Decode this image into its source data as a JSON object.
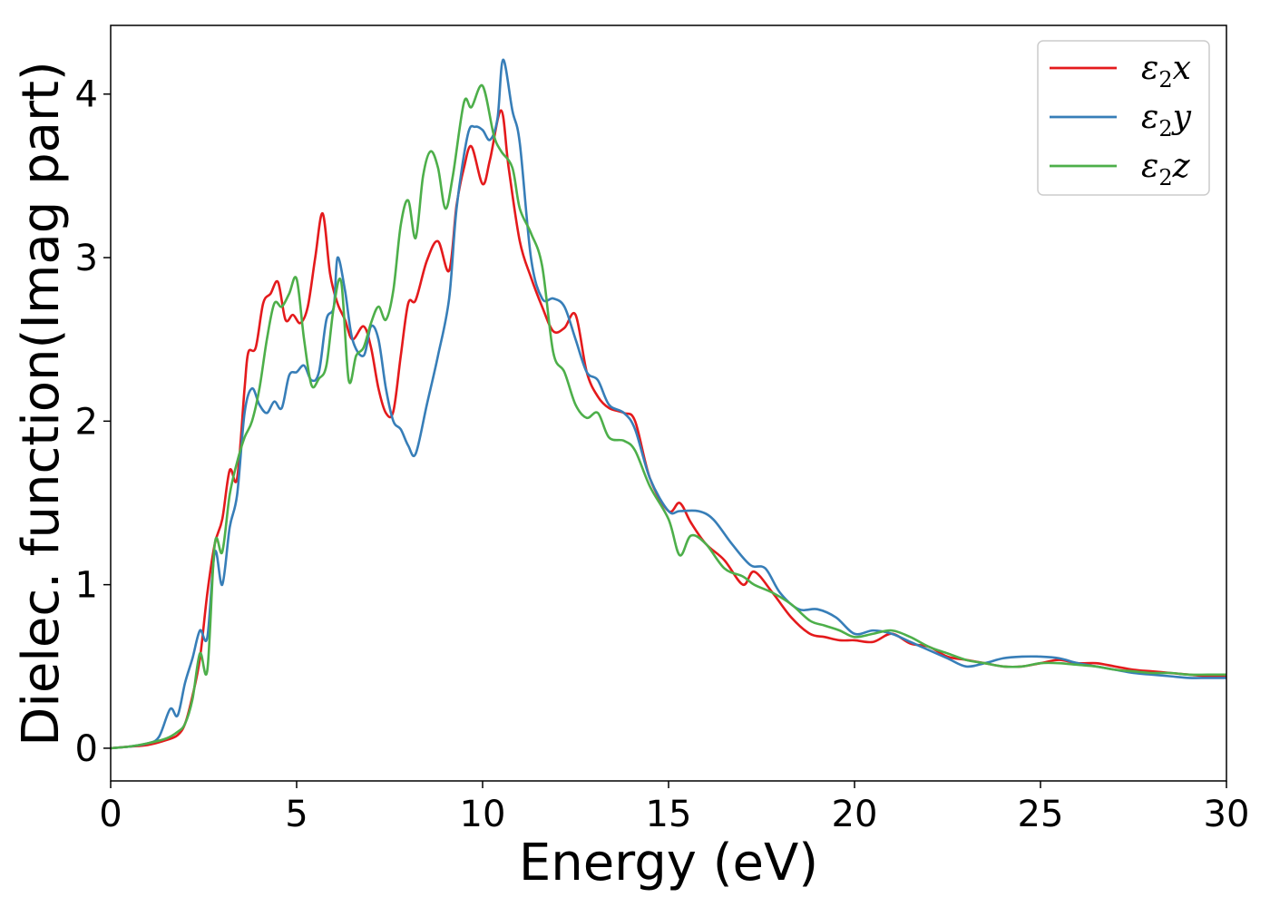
{
  "chart_data": {
    "type": "line",
    "title": "",
    "xlabel": "Energy (eV)",
    "ylabel": "Dielec. function(Imag part)",
    "xlim": [
      0,
      30
    ],
    "ylim": [
      -0.2,
      4.42
    ],
    "xticks": [
      0,
      5,
      10,
      15,
      20,
      25,
      30
    ],
    "yticks": [
      0,
      1,
      2,
      3,
      4
    ],
    "grid": false,
    "legend_position": "top-right",
    "series": [
      {
        "name": "ε2x",
        "symbol": "ε",
        "subscript": "2",
        "axis": "x",
        "color": "#e41a1c",
        "x": [
          0,
          0.5,
          1,
          1.5,
          1.8,
          2,
          2.2,
          2.4,
          2.6,
          2.8,
          3,
          3.2,
          3.4,
          3.6,
          3.7,
          3.9,
          4.1,
          4.3,
          4.5,
          4.7,
          4.9,
          5.1,
          5.3,
          5.5,
          5.7,
          5.9,
          6.1,
          6.3,
          6.5,
          6.8,
          7,
          7.2,
          7.4,
          7.6,
          7.8,
          8,
          8.2,
          8.5,
          8.8,
          9.1,
          9.3,
          9.5,
          9.7,
          10,
          10.2,
          10.5,
          10.7,
          11,
          11.3,
          11.6,
          11.9,
          12.2,
          12.5,
          12.8,
          13.1,
          13.4,
          13.8,
          14.1,
          14.5,
          15,
          15.3,
          15.6,
          16,
          16.5,
          17,
          17.3,
          17.8,
          18.3,
          18.8,
          19.2,
          19.6,
          20,
          20.5,
          21,
          21.5,
          22,
          22.5,
          23,
          23.5,
          24,
          24.5,
          25,
          25.5,
          26,
          26.5,
          27,
          27.5,
          28,
          28.5,
          29,
          29.5,
          30
        ],
        "values": [
          0,
          0.01,
          0.02,
          0.05,
          0.08,
          0.15,
          0.32,
          0.55,
          0.95,
          1.25,
          1.4,
          1.7,
          1.65,
          2.2,
          2.42,
          2.45,
          2.72,
          2.78,
          2.85,
          2.62,
          2.65,
          2.6,
          2.7,
          3.0,
          3.27,
          2.9,
          2.72,
          2.62,
          2.5,
          2.58,
          2.45,
          2.2,
          2.05,
          2.06,
          2.4,
          2.72,
          2.74,
          2.98,
          3.1,
          2.92,
          3.32,
          3.55,
          3.68,
          3.45,
          3.6,
          3.9,
          3.55,
          3.1,
          2.88,
          2.7,
          2.55,
          2.57,
          2.65,
          2.3,
          2.15,
          2.08,
          2.05,
          2.0,
          1.65,
          1.45,
          1.5,
          1.38,
          1.25,
          1.15,
          1.0,
          1.08,
          0.95,
          0.8,
          0.7,
          0.68,
          0.66,
          0.66,
          0.65,
          0.7,
          0.64,
          0.62,
          0.56,
          0.54,
          0.52,
          0.5,
          0.5,
          0.52,
          0.54,
          0.52,
          0.52,
          0.5,
          0.48,
          0.47,
          0.46,
          0.45,
          0.44,
          0.44
        ]
      },
      {
        "name": "ε2y",
        "symbol": "ε",
        "subscript": "2",
        "axis": "y",
        "color": "#377eb8",
        "x": [
          0,
          0.5,
          1,
          1.3,
          1.6,
          1.8,
          2,
          2.2,
          2.4,
          2.6,
          2.8,
          3,
          3.2,
          3.4,
          3.6,
          3.8,
          4,
          4.2,
          4.4,
          4.6,
          4.8,
          5,
          5.2,
          5.4,
          5.6,
          5.8,
          6,
          6.1,
          6.3,
          6.5,
          6.8,
          7,
          7.2,
          7.4,
          7.6,
          7.8,
          8,
          8.2,
          8.5,
          8.8,
          9.1,
          9.3,
          9.6,
          9.8,
          10,
          10.2,
          10.4,
          10.55,
          10.8,
          11,
          11.3,
          11.6,
          11.9,
          12.2,
          12.5,
          12.8,
          13.1,
          13.4,
          13.8,
          14.1,
          14.5,
          15,
          15.3,
          15.8,
          16.2,
          16.7,
          17.2,
          17.6,
          18,
          18.5,
          19,
          19.5,
          20,
          20.5,
          21,
          21.5,
          22,
          22.5,
          23,
          23.5,
          24,
          24.5,
          25,
          25.5,
          26,
          26.5,
          27,
          27.5,
          28,
          28.5,
          29,
          29.5,
          30
        ],
        "values": [
          0,
          0.01,
          0.03,
          0.07,
          0.24,
          0.2,
          0.4,
          0.55,
          0.72,
          0.68,
          1.2,
          1.0,
          1.35,
          1.55,
          2.05,
          2.2,
          2.1,
          2.05,
          2.12,
          2.08,
          2.28,
          2.3,
          2.34,
          2.25,
          2.3,
          2.62,
          2.7,
          3.0,
          2.8,
          2.5,
          2.4,
          2.58,
          2.5,
          2.2,
          2.0,
          1.95,
          1.85,
          1.8,
          2.1,
          2.4,
          2.75,
          3.3,
          3.75,
          3.8,
          3.78,
          3.72,
          3.85,
          4.21,
          3.9,
          3.7,
          3.0,
          2.75,
          2.75,
          2.7,
          2.5,
          2.3,
          2.25,
          2.1,
          2.05,
          1.95,
          1.65,
          1.45,
          1.45,
          1.45,
          1.4,
          1.25,
          1.12,
          1.1,
          0.95,
          0.85,
          0.85,
          0.8,
          0.7,
          0.72,
          0.7,
          0.65,
          0.6,
          0.55,
          0.5,
          0.52,
          0.55,
          0.56,
          0.56,
          0.55,
          0.52,
          0.5,
          0.48,
          0.46,
          0.45,
          0.44,
          0.43,
          0.43,
          0.43
        ]
      },
      {
        "name": "ε2z",
        "symbol": "ε",
        "subscript": "2",
        "axis": "z",
        "color": "#4daf4a",
        "x": [
          0,
          0.5,
          1,
          1.5,
          1.8,
          2,
          2.2,
          2.4,
          2.6,
          2.8,
          3,
          3.2,
          3.4,
          3.6,
          3.8,
          4,
          4.2,
          4.4,
          4.6,
          4.8,
          5,
          5.2,
          5.4,
          5.6,
          5.8,
          6,
          6.2,
          6.4,
          6.6,
          6.8,
          7,
          7.2,
          7.4,
          7.6,
          7.8,
          8,
          8.2,
          8.4,
          8.6,
          8.8,
          9,
          9.2,
          9.5,
          9.7,
          10,
          10.3,
          10.5,
          10.8,
          11,
          11.3,
          11.6,
          11.9,
          12.2,
          12.5,
          12.8,
          13.1,
          13.4,
          13.8,
          14.1,
          14.5,
          15,
          15.3,
          15.6,
          16,
          16.5,
          17,
          17.3,
          17.8,
          18.3,
          18.8,
          19.2,
          19.6,
          20,
          20.5,
          21,
          21.5,
          22,
          22.5,
          23,
          23.5,
          24,
          24.5,
          25,
          25.5,
          26,
          26.5,
          27,
          27.5,
          28,
          28.5,
          29,
          29.5,
          30
        ],
        "values": [
          0,
          0.01,
          0.03,
          0.06,
          0.1,
          0.15,
          0.3,
          0.58,
          0.48,
          1.25,
          1.2,
          1.55,
          1.75,
          1.9,
          2.0,
          2.2,
          2.5,
          2.72,
          2.7,
          2.78,
          2.87,
          2.5,
          2.22,
          2.26,
          2.34,
          2.7,
          2.85,
          2.25,
          2.4,
          2.45,
          2.6,
          2.7,
          2.62,
          2.8,
          3.2,
          3.35,
          3.12,
          3.5,
          3.65,
          3.55,
          3.3,
          3.5,
          3.95,
          3.92,
          4.05,
          3.75,
          3.65,
          3.55,
          3.3,
          3.15,
          2.95,
          2.42,
          2.3,
          2.1,
          2.02,
          2.05,
          1.9,
          1.88,
          1.82,
          1.6,
          1.4,
          1.18,
          1.3,
          1.25,
          1.1,
          1.05,
          1.0,
          0.95,
          0.88,
          0.78,
          0.75,
          0.72,
          0.68,
          0.7,
          0.72,
          0.68,
          0.62,
          0.58,
          0.54,
          0.52,
          0.5,
          0.5,
          0.52,
          0.52,
          0.51,
          0.5,
          0.48,
          0.47,
          0.46,
          0.46,
          0.45,
          0.45,
          0.45
        ]
      }
    ]
  }
}
